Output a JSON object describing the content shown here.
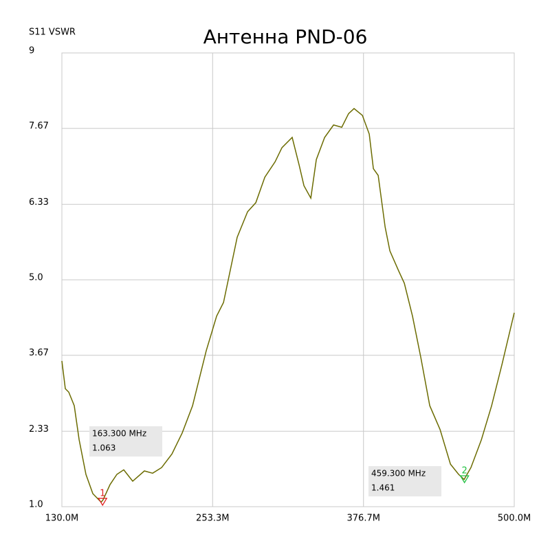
{
  "chart_data": {
    "type": "line",
    "title": "Антенна PND-06",
    "y_label": "S11 VSWR",
    "xlim": [
      130,
      500
    ],
    "ylim": [
      1,
      9
    ],
    "xticks": [
      {
        "value": 130,
        "label": "130.0M"
      },
      {
        "value": 253.3,
        "label": "253.3M"
      },
      {
        "value": 376.7,
        "label": "376.7M"
      },
      {
        "value": 500,
        "label": "500.0M"
      }
    ],
    "yticks": [
      {
        "value": 1,
        "label": "1.0"
      },
      2.33,
      3.67,
      {
        "value": 5,
        "label": "5.0"
      },
      6.33,
      7.67,
      9
    ],
    "grid": true,
    "series": [
      {
        "color": "#6b6b00",
        "x": [
          130,
          132.8,
          135.6,
          140.1,
          144.1,
          149.7,
          155.3,
          162.1,
          163.7,
          169.4,
          175.0,
          180.6,
          187.9,
          197.5,
          204.2,
          211.6,
          220,
          228.4,
          236.9,
          248.1,
          256.6,
          262.2,
          273.4,
          281.9,
          288.6,
          296.0,
          304.4,
          310.0,
          318.4,
          324.1,
          328.0,
          333.6,
          338.1,
          344.9,
          352.2,
          358.9,
          364.5,
          369.0,
          375.8,
          381.4,
          384.8,
          388.7,
          394.4,
          398.3,
          405.6,
          410.1,
          416.8,
          423.6,
          430.9,
          439.3,
          447.8,
          454.5,
          459.0,
          464.6,
          473.1,
          481.5,
          490,
          500
        ],
        "values": [
          3.57,
          3.08,
          3.02,
          2.78,
          2.18,
          1.57,
          1.23,
          1.08,
          1.12,
          1.39,
          1.57,
          1.65,
          1.45,
          1.63,
          1.59,
          1.69,
          1.93,
          2.3,
          2.78,
          3.75,
          4.36,
          4.6,
          5.75,
          6.2,
          6.36,
          6.81,
          7.08,
          7.33,
          7.51,
          7.02,
          6.66,
          6.44,
          7.12,
          7.51,
          7.73,
          7.69,
          7.93,
          8.02,
          7.9,
          7.57,
          6.96,
          6.84,
          5.93,
          5.51,
          5.15,
          4.94,
          4.36,
          3.63,
          2.78,
          2.36,
          1.75,
          1.57,
          1.48,
          1.69,
          2.18,
          2.78,
          3.51,
          4.42
        ]
      }
    ],
    "markers": [
      {
        "label": "1",
        "x": 163.3,
        "y": 1.063,
        "freq_label": "163.300 MHz",
        "value_label": "1.063",
        "color": "#e02020"
      },
      {
        "label": "2",
        "x": 459.3,
        "y": 1.461,
        "freq_label": "459.300 MHz",
        "value_label": "1.461",
        "color": "#20c040"
      }
    ]
  }
}
